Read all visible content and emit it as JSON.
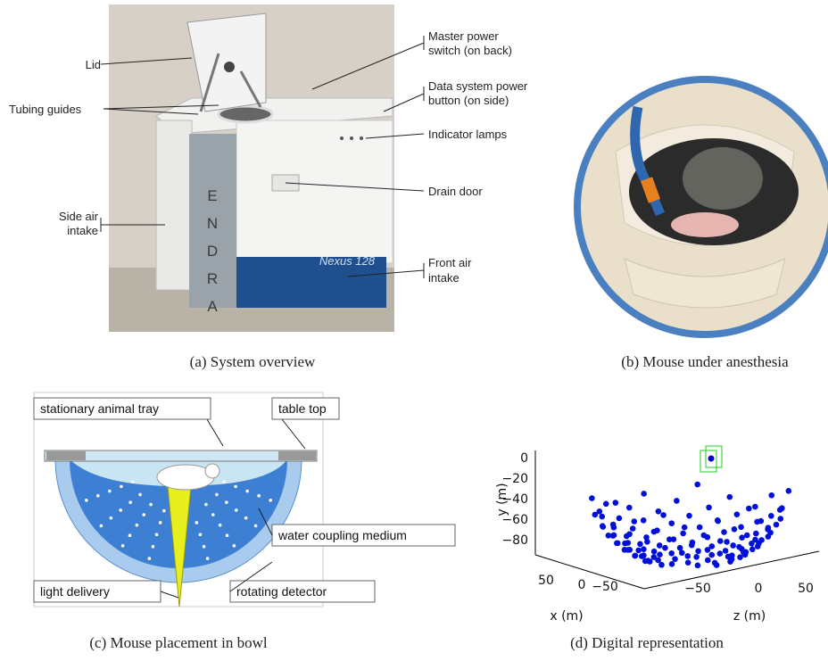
{
  "panel_a": {
    "caption": "(a) System overview",
    "brand": "ENDRA",
    "model": "Nexus 128",
    "labels": {
      "lid": [
        "Lid"
      ],
      "master_power": [
        "Master power",
        "switch (on back)"
      ],
      "data_power": [
        "Data system power",
        "button (on side)"
      ],
      "lamps": [
        "Indicator lamps"
      ],
      "tubing": [
        "Tubing guides"
      ],
      "drain": [
        "Drain door"
      ],
      "side_air": [
        "Side air",
        "intake"
      ],
      "front_air": [
        "Front air",
        "intake"
      ]
    }
  },
  "panel_b": {
    "caption": "(b) Mouse under anesthesia"
  },
  "panel_c": {
    "caption": "(c) Mouse placement in bowl",
    "labels": {
      "tray": "stationary animal tray",
      "table": "table top",
      "water": "water coupling medium",
      "light": "light delivery",
      "detector": "rotating detector"
    }
  },
  "panel_d": {
    "caption": "(d) Digital representation",
    "ylabel": "y (m)",
    "xlabel": "x (m)",
    "zlabel": "z (m)",
    "yticks": [
      "0",
      "−20",
      "−40",
      "−60",
      "−80"
    ],
    "xticks": [
      "50",
      "0",
      "−50"
    ],
    "zticks": [
      "−50",
      "0",
      "50"
    ]
  }
}
